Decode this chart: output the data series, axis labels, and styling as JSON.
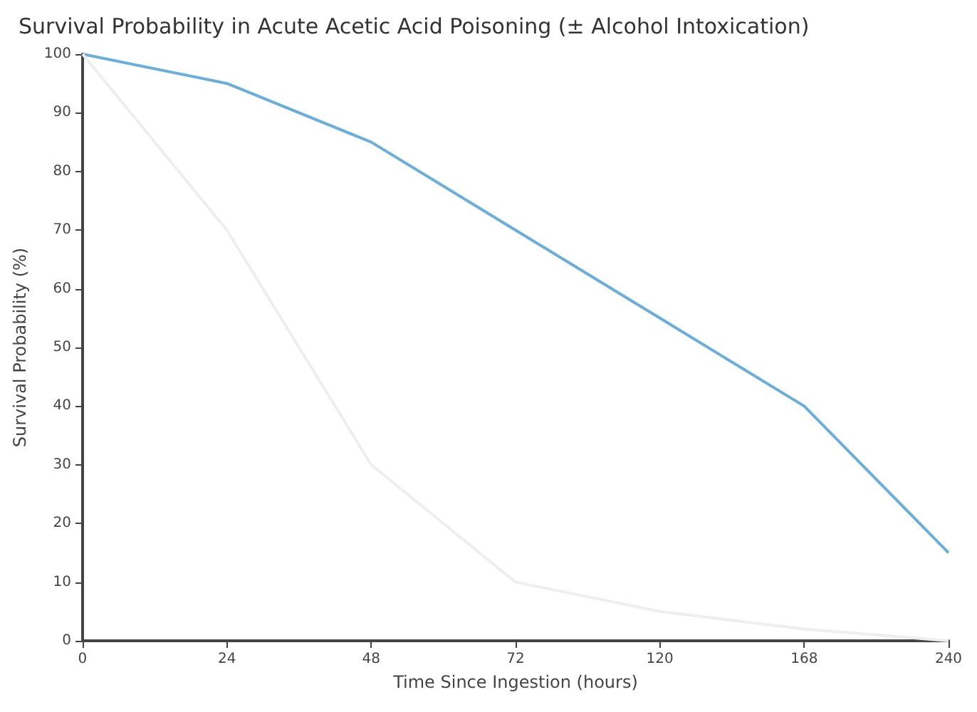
{
  "chart_data": {
    "type": "line",
    "title": "Survival Probability in Acute Acetic Acid Poisoning (± Alcohol Intoxication)",
    "xlabel": "Time Since Ingestion (hours)",
    "ylabel": "Survival Probability (%)",
    "categories": [
      "0",
      "24",
      "48",
      "72",
      "120",
      "168",
      "240"
    ],
    "series": [
      {
        "color": "#6aaedc",
        "values": [
          100,
          95,
          85,
          70,
          55,
          40,
          15
        ]
      },
      {
        "color": "#eeeeee",
        "values": [
          100,
          70,
          30,
          10,
          5,
          2,
          0
        ]
      }
    ],
    "ylim": [
      0,
      100
    ],
    "yticks": [
      0,
      10,
      20,
      30,
      40,
      50,
      60,
      70,
      80,
      90,
      100
    ],
    "grid": false,
    "marker": "none",
    "line_style": "solid"
  }
}
